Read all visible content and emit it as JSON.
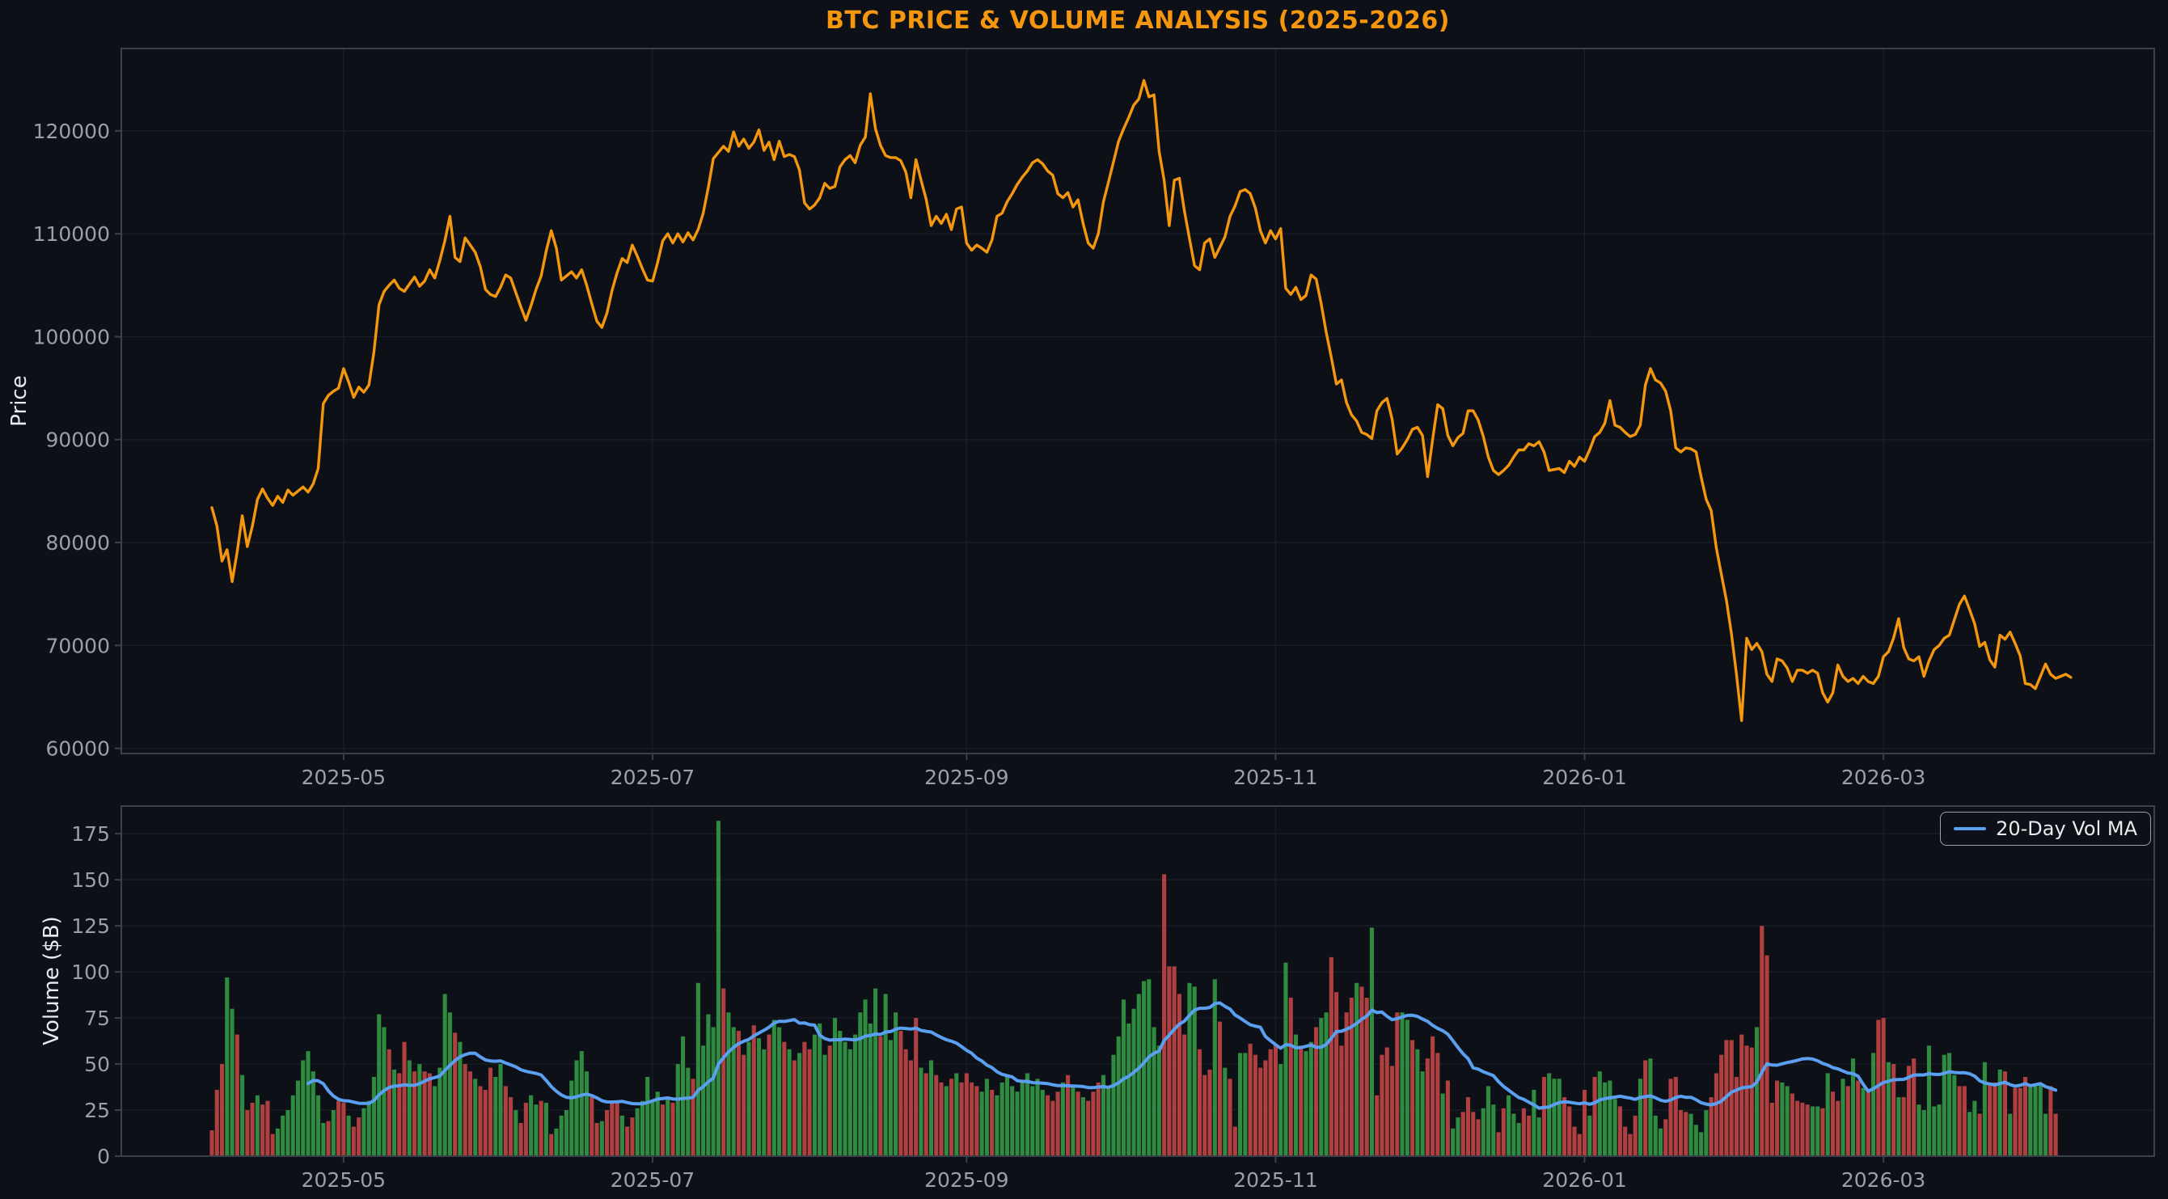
{
  "title": "BTC PRICE & VOLUME ANALYSIS (2025-2026)",
  "colors": {
    "background": "#0d1117",
    "grid": "#1a1f2a",
    "spine": "#3a404c",
    "tick_text": "#99a0ac",
    "axis_label_text": "#e6e9ee",
    "title": "#f5960f",
    "price_line": "#f5960f",
    "volume_up": "#2f8b3f",
    "volume_down": "#b04040",
    "ma_line": "#5b9ff0",
    "legend_border": "#9aa0aa"
  },
  "price_chart": {
    "ylabel": "Price",
    "ytick_labels": [
      "60000",
      "70000",
      "80000",
      "90000",
      "100000",
      "110000",
      "120000"
    ]
  },
  "volume_chart": {
    "ylabel": "Volume ($B)",
    "ytick_labels": [
      "0",
      "25",
      "50",
      "75",
      "100",
      "125",
      "150",
      "175"
    ],
    "legend_label": "20-Day Vol MA"
  },
  "chart_data": {
    "type": "line+bar",
    "title": "BTC PRICE & VOLUME ANALYSIS (2025-2026)",
    "x_start_date": "2025-04-05",
    "x_step_days": 1,
    "x_ticks": [
      {
        "label": "2025-05",
        "day": 26
      },
      {
        "label": "2025-07",
        "day": 87
      },
      {
        "label": "2025-09",
        "day": 149
      },
      {
        "label": "2025-11",
        "day": 210
      },
      {
        "label": "2026-01",
        "day": 271
      },
      {
        "label": "2026-03",
        "day": 330
      }
    ],
    "price": {
      "ylabel": "Price",
      "unit": "USD (values stored in thousands)",
      "ylim": [
        59500,
        128000
      ],
      "yticks": [
        60000,
        70000,
        80000,
        90000,
        100000,
        110000,
        120000
      ],
      "values_k": [
        83.4,
        81.6,
        78.2,
        79.3,
        76.2,
        79.1,
        82.6,
        79.6,
        81.6,
        84.2,
        85.2,
        84.3,
        83.6,
        84.5,
        83.9,
        85.1,
        84.6,
        85.0,
        85.4,
        84.9,
        85.7,
        87.2,
        93.5,
        94.3,
        94.7,
        95.0,
        96.9,
        95.6,
        94.1,
        95.1,
        94.6,
        95.3,
        98.5,
        103.1,
        104.4,
        105.0,
        105.5,
        104.7,
        104.4,
        105.1,
        105.8,
        104.9,
        105.4,
        106.5,
        105.7,
        107.4,
        109.3,
        111.7,
        107.7,
        107.3,
        109.6,
        108.9,
        108.2,
        106.8,
        104.6,
        104.1,
        103.9,
        104.8,
        106.0,
        105.7,
        104.3,
        102.9,
        101.6,
        103.0,
        104.6,
        105.9,
        108.3,
        110.3,
        108.6,
        105.5,
        105.9,
        106.3,
        105.7,
        106.5,
        105.0,
        103.2,
        101.5,
        100.9,
        102.3,
        104.5,
        106.2,
        107.6,
        107.2,
        108.9,
        107.8,
        106.6,
        105.5,
        105.4,
        107.2,
        109.3,
        110.0,
        109.1,
        110.0,
        109.2,
        110.1,
        109.4,
        110.4,
        112.0,
        114.5,
        117.3,
        117.9,
        118.5,
        118.0,
        119.9,
        118.5,
        119.2,
        118.3,
        118.9,
        120.1,
        118.1,
        118.9,
        117.2,
        119.0,
        117.5,
        117.7,
        117.5,
        116.2,
        113.0,
        112.4,
        112.8,
        113.5,
        114.9,
        114.4,
        114.6,
        116.5,
        117.2,
        117.6,
        116.9,
        118.6,
        119.4,
        123.6,
        120.2,
        118.6,
        117.6,
        117.4,
        117.4,
        117.1,
        116.0,
        113.5,
        117.2,
        115.2,
        113.4,
        110.8,
        111.7,
        111.0,
        111.9,
        110.4,
        112.4,
        112.6,
        109.1,
        108.4,
        108.9,
        108.6,
        108.2,
        109.4,
        111.7,
        112.0,
        113.1,
        113.9,
        114.8,
        115.5,
        116.1,
        116.9,
        117.2,
        116.8,
        116.1,
        115.7,
        113.9,
        113.5,
        114.0,
        112.6,
        113.3,
        111.0,
        109.1,
        108.6,
        110.0,
        113.1,
        115.0,
        117.0,
        119.0,
        120.2,
        121.3,
        122.5,
        123.1,
        124.9,
        123.3,
        123.5,
        118.0,
        115.2,
        110.8,
        115.2,
        115.4,
        112.2,
        109.5,
        106.9,
        106.5,
        109.1,
        109.5,
        107.7,
        108.7,
        109.7,
        111.7,
        112.7,
        114.1,
        114.3,
        113.9,
        112.5,
        110.3,
        109.1,
        110.3,
        109.5,
        110.5,
        104.7,
        104.1,
        104.8,
        103.6,
        104.0,
        106.0,
        105.6,
        103.2,
        100.4,
        98.0,
        95.4,
        95.8,
        93.6,
        92.4,
        91.8,
        90.7,
        90.5,
        90.1,
        92.8,
        93.6,
        94.0,
        92.0,
        88.6,
        89.2,
        90.0,
        91.0,
        91.2,
        90.4,
        86.4,
        90.0,
        93.4,
        93.0,
        90.4,
        89.4,
        90.2,
        90.6,
        92.8,
        92.8,
        91.9,
        90.3,
        88.3,
        87.0,
        86.6,
        87.0,
        87.5,
        88.3,
        89.0,
        89.0,
        89.6,
        89.4,
        89.8,
        88.8,
        87.0,
        87.1,
        87.2,
        86.8,
        87.9,
        87.4,
        88.3,
        87.9,
        89.0,
        90.3,
        90.7,
        91.6,
        93.8,
        91.4,
        91.2,
        90.7,
        90.3,
        90.5,
        91.4,
        95.3,
        96.9,
        95.8,
        95.5,
        94.7,
        92.8,
        89.2,
        88.8,
        89.2,
        89.1,
        88.8,
        86.4,
        84.2,
        83.1,
        79.5,
        76.9,
        74.4,
        71.1,
        67.1,
        62.7,
        70.7,
        69.6,
        70.2,
        69.4,
        67.2,
        66.5,
        68.7,
        68.5,
        67.8,
        66.5,
        67.6,
        67.6,
        67.3,
        67.6,
        67.3,
        65.4,
        64.5,
        65.4,
        68.1,
        67.0,
        66.5,
        66.8,
        66.3,
        67.0,
        66.5,
        66.3,
        67.0,
        68.9,
        69.4,
        70.7,
        72.6,
        69.8,
        68.7,
        68.5,
        68.9,
        67.0,
        68.5,
        69.6,
        70.0,
        70.7,
        71.0,
        72.5,
        74.0,
        74.8,
        73.5,
        72.1,
        69.9,
        70.3,
        68.6,
        67.9,
        71.0,
        70.6,
        71.3,
        70.2,
        69.0,
        66.3,
        66.2,
        65.8,
        67.0,
        68.2,
        67.2,
        66.8,
        67.0,
        67.2,
        66.9
      ]
    },
    "volume": {
      "ylabel": "Volume ($B)",
      "unit": "billions USD",
      "ylim": [
        0,
        190
      ],
      "yticks": [
        0,
        25,
        50,
        75,
        100,
        125,
        150,
        175
      ],
      "values": [
        14,
        36,
        50,
        97,
        80,
        66,
        44,
        25,
        29,
        33,
        28,
        30,
        12,
        15,
        22,
        25,
        33,
        41,
        52,
        57,
        46,
        33,
        18,
        19,
        25,
        30,
        29,
        22,
        16,
        21,
        26,
        30,
        43,
        77,
        70,
        58,
        47,
        45,
        62,
        52,
        46,
        50,
        46,
        45,
        38,
        48,
        88,
        78,
        67,
        62,
        50,
        46,
        42,
        38,
        36,
        48,
        43,
        50,
        38,
        32,
        25,
        18,
        29,
        33,
        28,
        30,
        29,
        12,
        15,
        22,
        25,
        41,
        52,
        57,
        46,
        33,
        18,
        19,
        25,
        30,
        29,
        22,
        16,
        21,
        26,
        30,
        43,
        30,
        35,
        28,
        32,
        29,
        50,
        65,
        48,
        42,
        94,
        60,
        77,
        70,
        182,
        91,
        78,
        70,
        68,
        55,
        62,
        71,
        64,
        58,
        66,
        74,
        70,
        62,
        58,
        52,
        56,
        62,
        58,
        66,
        72,
        55,
        60,
        75,
        68,
        62,
        58,
        66,
        78,
        85,
        72,
        91,
        65,
        88,
        63,
        78,
        68,
        58,
        52,
        75,
        48,
        45,
        52,
        44,
        40,
        38,
        42,
        45,
        40,
        45,
        40,
        38,
        35,
        42,
        36,
        33,
        40,
        44,
        38,
        35,
        40,
        45,
        38,
        42,
        36,
        33,
        30,
        35,
        40,
        44,
        38,
        35,
        32,
        30,
        35,
        40,
        44,
        38,
        55,
        65,
        85,
        72,
        80,
        88,
        95,
        96,
        70,
        60,
        153,
        103,
        103,
        88,
        66,
        94,
        92,
        58,
        44,
        47,
        96,
        73,
        48,
        42,
        16,
        56,
        56,
        61,
        55,
        48,
        52,
        58,
        60,
        50,
        105,
        86,
        66,
        60,
        57,
        62,
        70,
        75,
        78,
        108,
        89,
        60,
        78,
        86,
        94,
        92,
        86,
        124,
        33,
        55,
        59,
        49,
        78,
        78,
        74,
        63,
        58,
        46,
        53,
        65,
        56,
        34,
        41,
        15,
        21,
        24,
        32,
        24,
        20,
        26,
        38,
        28,
        13,
        26,
        33,
        23,
        18,
        26,
        22,
        36,
        21,
        43,
        45,
        42,
        42,
        32,
        27,
        16,
        12,
        36,
        22,
        43,
        46,
        40,
        41,
        31,
        27,
        16,
        12,
        22,
        42,
        52,
        53,
        22,
        15,
        20,
        42,
        43,
        25,
        24,
        23,
        17,
        13,
        25,
        32,
        45,
        55,
        63,
        63,
        43,
        66,
        60,
        59,
        70,
        125,
        109,
        29,
        41,
        40,
        38,
        34,
        30,
        29,
        28,
        27,
        27,
        26,
        45,
        35,
        30,
        42,
        38,
        53,
        41,
        37,
        35,
        56,
        74,
        75,
        51,
        50,
        32,
        32,
        49,
        53,
        28,
        25,
        60,
        27,
        28,
        55,
        56,
        44,
        38,
        38,
        24,
        30,
        23,
        51,
        40,
        40,
        47,
        46,
        23,
        37,
        37,
        43,
        38,
        38,
        39,
        23,
        38,
        23
      ],
      "up_down": "rrrggrgrrgrrrggggggggggrgrrgrrgggggrgrrgrgrrggggrgrrgrrrggrrgrrggrgrgggggggrrgrrrgrrgggggrgrgggrggggg rggrrgrggrggrgrgrrgggrgggggggggrgggrrrrgrgrrgrgrrrrggrggggggggggrrrgrgrgrrrggggggggggggrrrrrggrrrgrgrrggrrrrrrggrgrggrggrrrrrgrrgrrrrrggrggrrrgrggrrrrgggrrgggrrggrgggrrrrrgrggggrrrrgrgggrrrrrggggrrrrrrrrrgrrrrggrrrrggrgrrgrgrgrgrrgrgrrrggggggggrrggrgrrgrgrrrggggrrgrg"
    },
    "ma": {
      "label": "20-Day Vol MA",
      "window": 20,
      "color": "#5b9ff0"
    }
  }
}
